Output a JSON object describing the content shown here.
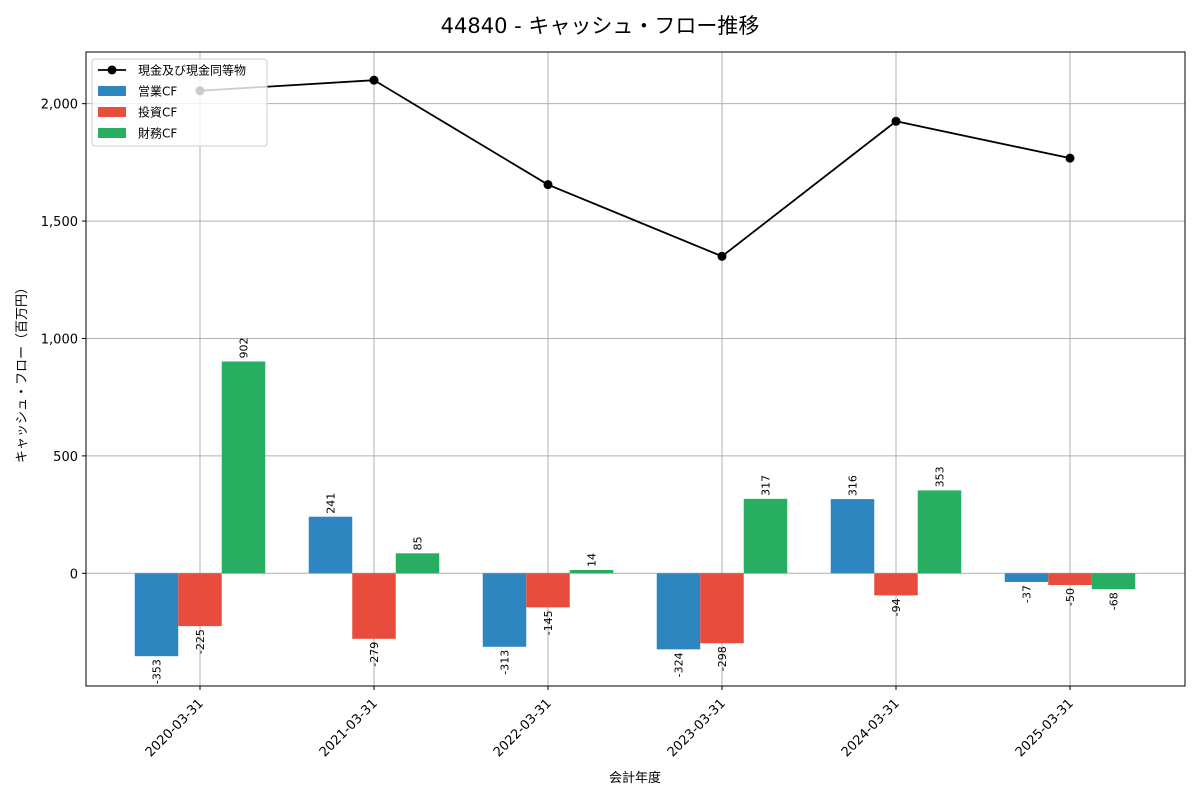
{
  "chart_data": {
    "type": "bar",
    "title": "44840 - キャッシュ・フロー推移",
    "xlabel": "会計年度",
    "ylabel": "キャッシュ・フロー（百万円）",
    "categories": [
      "2020-03-31",
      "2021-03-31",
      "2022-03-31",
      "2023-03-31",
      "2024-03-31",
      "2025-03-31"
    ],
    "series": [
      {
        "name": "営業CF",
        "type": "bar",
        "color": "#2e86c1",
        "values": [
          -353,
          241,
          -313,
          -324,
          316,
          -37
        ]
      },
      {
        "name": "投資CF",
        "type": "bar",
        "color": "#e74c3c",
        "values": [
          -225,
          -279,
          -145,
          -298,
          -94,
          -50
        ]
      },
      {
        "name": "財務CF",
        "type": "bar",
        "color": "#27ae60",
        "values": [
          902,
          85,
          14,
          317,
          353,
          -68
        ]
      },
      {
        "name": "現金及び現金同等物",
        "type": "line",
        "color": "#000000",
        "values": [
          2055,
          2100,
          1655,
          1350,
          1925,
          1768
        ]
      }
    ],
    "ylim": [
      -480,
      2220
    ],
    "yticks": [
      0,
      500,
      1000,
      1500,
      2000
    ],
    "ytick_labels": [
      "0",
      "500",
      "1,000",
      "1,500",
      "2,000"
    ],
    "grid": true,
    "legend_position": "top-left"
  }
}
